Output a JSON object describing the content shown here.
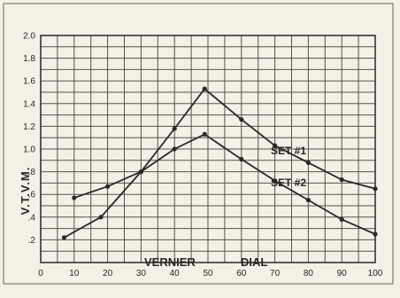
{
  "chart_data": {
    "type": "line",
    "title": "",
    "ylabel": "V.T.V.M.",
    "xlabel_parts": [
      "VERNIER",
      "DIAL"
    ],
    "xlim": [
      0,
      100
    ],
    "ylim": [
      0,
      2.0
    ],
    "x_ticks": [
      "0",
      "10",
      "20",
      "30",
      "40",
      "50",
      "60",
      "70",
      "80",
      "90",
      "100"
    ],
    "y_ticks": [
      ".2",
      ".4",
      ".6",
      ".8",
      "1.0",
      "1.2",
      "1.4",
      "1.6",
      "1.8",
      "2.0"
    ],
    "grid": true,
    "series": [
      {
        "name": "SET #1",
        "x": [
          7,
          18,
          30,
          40,
          49,
          60,
          70,
          80,
          90,
          100
        ],
        "y": [
          0.22,
          0.4,
          0.8,
          1.18,
          1.53,
          1.26,
          1.03,
          0.88,
          0.73,
          0.65
        ]
      },
      {
        "name": "SET #2",
        "x": [
          10,
          20,
          30,
          40,
          49,
          60,
          70,
          80,
          90,
          100
        ],
        "y": [
          0.57,
          0.67,
          0.8,
          1.0,
          1.13,
          0.91,
          0.72,
          0.55,
          0.38,
          0.25
        ]
      }
    ]
  }
}
